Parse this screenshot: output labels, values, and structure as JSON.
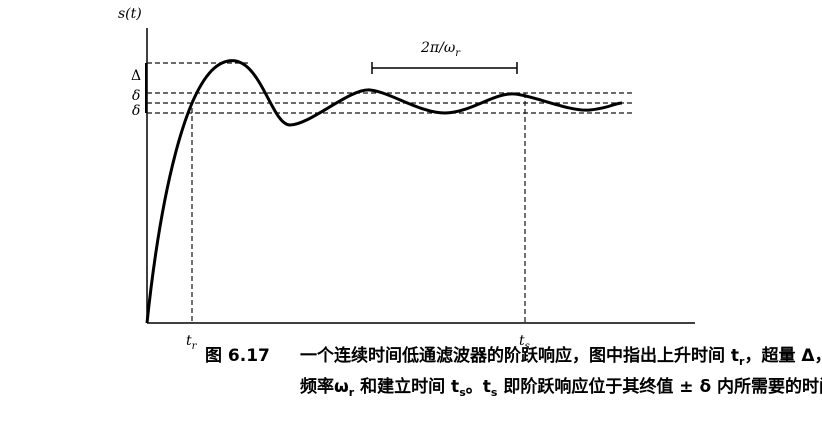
{
  "figure": {
    "y_axis_label": "s(t)",
    "overshoot_label": "Δ",
    "delta_upper_label": "δ",
    "delta_lower_label": "δ",
    "period_label": {
      "main": "2π/ω",
      "sub": "r"
    },
    "rise_time_label": {
      "main": "t",
      "sub": "r"
    },
    "settling_time_label": {
      "main": "t",
      "sub": "s"
    }
  },
  "caption": {
    "number": "图 6.17",
    "line1": [
      {
        "text": "一个连续时间低通滤波器的阶跃响应，图中指出上升时间 t"
      },
      {
        "text": "r",
        "sub": true
      },
      {
        "text": "，超量 Δ，振荡"
      }
    ],
    "line2": [
      {
        "text": "频率ω"
      },
      {
        "text": "r",
        "sub": true
      },
      {
        "text": " 和建立时间 t"
      },
      {
        "text": "s",
        "sub": true
      },
      {
        "text": "。t"
      },
      {
        "text": "s",
        "sub": true
      },
      {
        "text": " 即阶跃响应位于其终值 ± δ 内所需要的时间"
      }
    ]
  }
}
